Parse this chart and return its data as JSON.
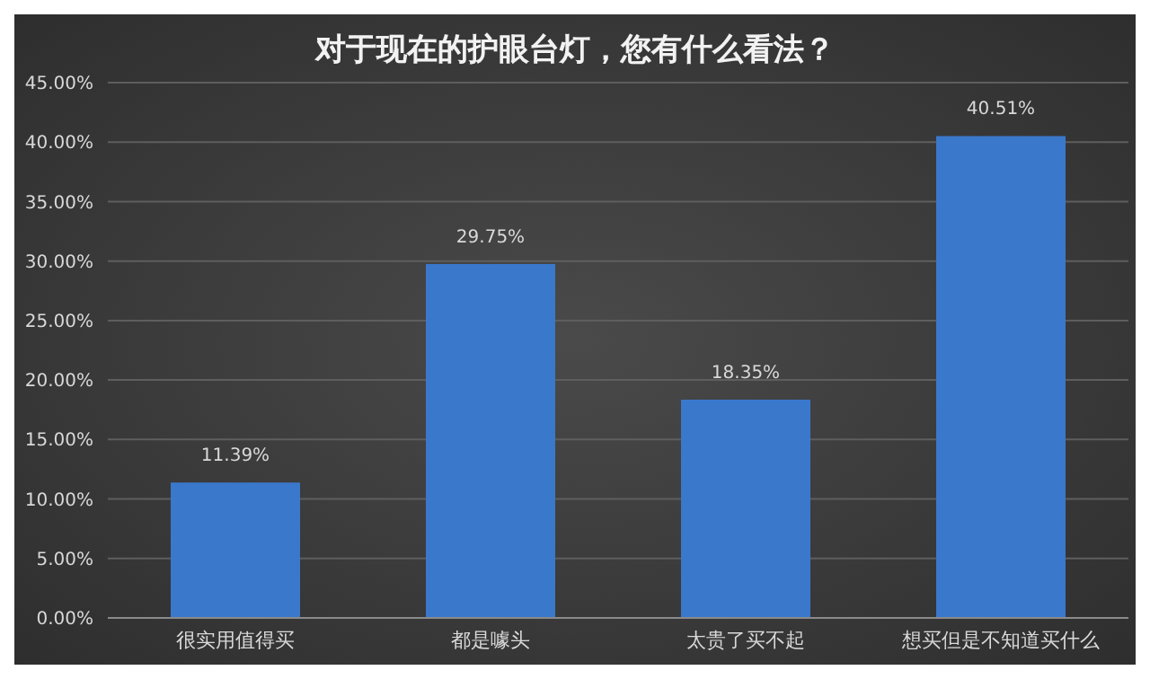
{
  "chart_data": {
    "type": "bar",
    "title": "对于现在的护眼台灯，您有什么看法？",
    "categories": [
      "很实用值得买",
      "都是噱头",
      "太贵了买不起",
      "想买但是不知道买什么"
    ],
    "values": [
      11.39,
      29.75,
      18.35,
      40.51
    ],
    "color": "#3a78cc",
    "value_labels": [
      "11.39%",
      "29.75%",
      "18.35%",
      "40.51%"
    ],
    "ylim": [
      0,
      45
    ],
    "yticks": [
      {
        "value": 0,
        "label": "0.00%"
      },
      {
        "value": 5,
        "label": "5.00%"
      },
      {
        "value": 10,
        "label": "10.00%"
      },
      {
        "value": 15,
        "label": "15.00%"
      },
      {
        "value": 20,
        "label": "20.00%"
      },
      {
        "value": 25,
        "label": "25.00%"
      },
      {
        "value": 30,
        "label": "30.00%"
      },
      {
        "value": 35,
        "label": "35.00%"
      },
      {
        "value": 40,
        "label": "40.00%"
      },
      {
        "value": 45,
        "label": "45.00%"
      }
    ],
    "grid": "y"
  }
}
